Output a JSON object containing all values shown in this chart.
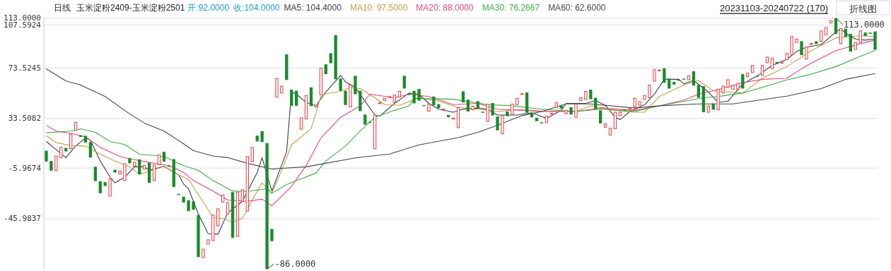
{
  "chart_data": {
    "type": "candlestick",
    "title": "玉米淀粉2409-玉米淀粉2501",
    "subtitle": "日线",
    "annotations": [
      "开:92.0000",
      "收:104.0000",
      "20231103-20240722 (170)",
      "折线图",
      "113.0000",
      "-86.0000"
    ],
    "categories": [
      null,
      null,
      null,
      null,
      null,
      null,
      null,
      null,
      null,
      null,
      null,
      null,
      null,
      null,
      null,
      null,
      null,
      null,
      null,
      null,
      null,
      null,
      null,
      null,
      null,
      null,
      null,
      null,
      null,
      null,
      null,
      null,
      null,
      null,
      null,
      null,
      null,
      null,
      null,
      null,
      null,
      null,
      null,
      null,
      null,
      null,
      null,
      null,
      null,
      null,
      null,
      null,
      null,
      null,
      null,
      null,
      null,
      null,
      null,
      null,
      null,
      null,
      null,
      null,
      null,
      null,
      null,
      null,
      null,
      null,
      null,
      null,
      null,
      null,
      null,
      null,
      null,
      null,
      null,
      null,
      null,
      null,
      null,
      null,
      null,
      null,
      null,
      null,
      null,
      null,
      null,
      null,
      null,
      null,
      null,
      null,
      null,
      null,
      null,
      null,
      null,
      null,
      null,
      null,
      null,
      null,
      null,
      null,
      null,
      null,
      null,
      null,
      null,
      null,
      null,
      null,
      null,
      null,
      null,
      null,
      null,
      null,
      null,
      null,
      null,
      null,
      null,
      null,
      null,
      null,
      null,
      null,
      null,
      null,
      null,
      null,
      null,
      null,
      null,
      null,
      null,
      null,
      null,
      null,
      null,
      null,
      null,
      null,
      null,
      null,
      null,
      null,
      null,
      null,
      null,
      null,
      null,
      null,
      null,
      null,
      null,
      null,
      null,
      null,
      null,
      null,
      null,
      null,
      null,
      null
    ],
    "ohlc": [
      [
        7.9,
        7.9,
        -0.7,
        -0.7
      ],
      [
        -0.3,
        -0.3,
        -8.0,
        -8.0
      ],
      [
        -8.0,
        3.7,
        -8.0,
        3.7
      ],
      [
        2.4,
        10.6,
        2.4,
        10.6
      ],
      [
        10.1,
        10.1,
        7.3,
        7.3
      ],
      [
        9.4,
        21.0,
        9.4,
        21.0
      ],
      [
        24.0,
        30.4,
        24.0,
        30.4
      ],
      [
        20.2,
        20.2,
        18.8,
        18.8
      ],
      [
        19.8,
        19.8,
        14.3,
        14.3
      ],
      [
        14.8,
        14.8,
        2.4,
        2.4
      ],
      [
        -4.9,
        -4.9,
        -16.2,
        -16.2
      ],
      [
        -16.4,
        -16.4,
        -25.9,
        -25.9
      ],
      [
        -17.1,
        -17.1,
        -20.1,
        -20.1
      ],
      [
        -28.1,
        -14.4,
        -28.1,
        -14.4
      ],
      [
        -7.2,
        -7.2,
        -9.4,
        -9.4
      ],
      [
        -10.7,
        -8.3,
        -10.7,
        -8.3
      ],
      [
        -15.8,
        -2.5,
        -15.8,
        -2.5
      ],
      [
        2.1,
        2.1,
        -2.1,
        -2.1
      ],
      [
        -4.5,
        -1.2,
        -4.5,
        -1.2
      ],
      [
        1.0,
        1.0,
        -10.9,
        -10.9
      ],
      [
        -6.7,
        -3.9,
        -6.7,
        -3.9
      ],
      [
        -1.7,
        -1.7,
        -17.6,
        -17.6
      ],
      [
        -15.8,
        -3.4,
        -15.8,
        -3.4
      ],
      [
        -3.2,
        4.6,
        -3.2,
        4.6
      ],
      [
        7.0,
        7.0,
        -0.7,
        -0.7
      ],
      [
        -4.0,
        -4.0,
        -4.5,
        -4.5
      ],
      [
        1.2,
        1.2,
        -20.9,
        -20.9
      ],
      [
        -26.4,
        -26.4,
        -27.3,
        -27.3
      ],
      [
        -28.6,
        -28.6,
        -33.2,
        -33.2
      ],
      [
        -31.4,
        -31.4,
        -40.1,
        -40.1
      ],
      [
        -32.3,
        -32.3,
        -39.0,
        -39.0
      ],
      [
        -43.2,
        -43.2,
        -76.5,
        -76.5
      ],
      [
        -77.0,
        -70.3,
        -77.0,
        -70.3
      ],
      [
        -66.1,
        -62.8,
        -66.1,
        -62.8
      ],
      [
        -63.4,
        -43.2,
        -63.4,
        -43.2
      ],
      [
        -51.8,
        -38.3,
        -51.8,
        -38.3
      ],
      [
        -32.8,
        -27.3,
        -32.8,
        -27.3
      ],
      [
        -42.3,
        -33.2,
        -42.3,
        -33.2
      ],
      [
        -25.0,
        -25.0,
        -61.2,
        -61.2
      ],
      [
        -60.1,
        -25.0,
        -60.1,
        -25.0
      ],
      [
        -32.3,
        -23.1,
        -32.3,
        -23.1
      ],
      [
        -40.0,
        3.3,
        -40.0,
        3.3
      ],
      [
        -0.7,
        10.3,
        -0.7,
        10.3
      ],
      [
        19.8,
        19.8,
        15.2,
        15.2
      ],
      [
        23.4,
        23.4,
        14.7,
        14.7
      ],
      [
        13.9,
        13.9,
        -86,
        -86
      ],
      [
        -54.2,
        -54.2,
        -63.9,
        -63.9
      ],
      [
        50.3,
        65.1,
        50.3,
        65.1
      ],
      [
        53.6,
        59.1,
        53.6,
        59.1
      ],
      [
        84.3,
        84.3,
        64.0,
        64.0
      ],
      [
        56.3,
        56.3,
        43.5,
        43.5
      ],
      [
        55.4,
        55.4,
        43.5,
        43.5
      ],
      [
        24.9,
        34.0,
        24.9,
        34.0
      ],
      [
        33.1,
        51.7,
        33.1,
        51.7
      ],
      [
        58.1,
        58.1,
        43.2,
        43.2
      ],
      [
        42.6,
        44.1,
        42.6,
        44.1
      ],
      [
        52.3,
        73.3,
        52.3,
        73.3
      ],
      [
        76.4,
        76.4,
        68.6,
        68.6
      ],
      [
        85.2,
        85.2,
        77.3,
        77.3
      ],
      [
        99.6,
        99.6,
        64.5,
        64.5
      ],
      [
        65.1,
        65.1,
        55.4,
        55.4
      ],
      [
        55.4,
        55.4,
        44.1,
        44.1
      ],
      [
        42.6,
        60.0,
        42.6,
        60.0
      ],
      [
        67.3,
        67.3,
        52.7,
        52.7
      ],
      [
        55.4,
        55.4,
        39.3,
        39.3
      ],
      [
        36.6,
        36.6,
        28.6,
        28.6
      ],
      [
        30.8,
        30.8,
        30.3,
        30.3
      ],
      [
        9.4,
        36.2,
        9.4,
        36.2
      ],
      [
        45.5,
        46.0,
        45.5,
        46.0
      ],
      [
        47.7,
        49.5,
        47.7,
        49.5
      ],
      [
        49.9,
        50.9,
        49.9,
        50.9
      ],
      [
        46.2,
        52.1,
        46.2,
        52.1
      ],
      [
        50.5,
        55.0,
        50.5,
        55.0
      ],
      [
        67.3,
        67.3,
        57.2,
        57.2
      ],
      [
        53.6,
        53.6,
        52.1,
        52.1
      ],
      [
        55.4,
        55.4,
        45.4,
        45.4
      ],
      [
        56.9,
        56.9,
        47.6,
        47.6
      ],
      [
        44.1,
        44.1,
        43.6,
        43.6
      ],
      [
        39.3,
        44.8,
        39.3,
        44.8
      ],
      [
        50.9,
        50.9,
        43.9,
        43.9
      ],
      [
        44.8,
        44.8,
        41.7,
        41.7
      ],
      [
        40.5,
        41.0,
        40.5,
        41.0
      ],
      [
        36.2,
        36.2,
        34.4,
        34.4
      ],
      [
        33.3,
        33.8,
        33.3,
        33.8
      ],
      [
        26.2,
        42.1,
        26.2,
        42.1
      ],
      [
        55.0,
        55.0,
        46.2,
        46.2
      ],
      [
        48.4,
        48.4,
        39.0,
        39.0
      ],
      [
        40.4,
        43.2,
        40.4,
        43.2
      ],
      [
        47.2,
        47.2,
        41.7,
        41.7
      ],
      [
        38.8,
        38.8,
        38.3,
        38.3
      ],
      [
        31.1,
        44.8,
        31.1,
        44.8
      ],
      [
        45.7,
        45.7,
        35.8,
        35.8
      ],
      [
        35.0,
        35.0,
        24.0,
        24.0
      ],
      [
        21.3,
        35.8,
        21.3,
        35.8
      ],
      [
        39.0,
        39.0,
        35.3,
        35.3
      ],
      [
        36.6,
        44.8,
        36.6,
        44.8
      ],
      [
        44.4,
        49.4,
        44.4,
        49.4
      ],
      [
        52.7,
        53.2,
        52.7,
        53.2
      ],
      [
        54.1,
        54.1,
        38.0,
        38.0
      ],
      [
        38.0,
        38.0,
        34.4,
        34.4
      ],
      [
        34.0,
        34.0,
        31.3,
        31.3
      ],
      [
        30.4,
        30.4,
        29.9,
        29.9
      ],
      [
        30.4,
        35.3,
        30.4,
        35.3
      ],
      [
        37.2,
        37.7,
        37.2,
        37.7
      ],
      [
        42.1,
        45.9,
        42.1,
        45.9
      ],
      [
        43.9,
        43.9,
        41.3,
        41.3
      ],
      [
        37.2,
        39.9,
        37.2,
        39.9
      ],
      [
        42.3,
        42.3,
        36.6,
        36.6
      ],
      [
        34.4,
        44.8,
        34.4,
        44.8
      ],
      [
        47.7,
        49.9,
        47.7,
        49.9
      ],
      [
        48.7,
        55.0,
        48.7,
        55.0
      ],
      [
        56.3,
        56.3,
        48.7,
        48.7
      ],
      [
        49.9,
        49.9,
        40.8,
        40.8
      ],
      [
        39.9,
        39.9,
        29.5,
        29.5
      ],
      [
        26.5,
        29.3,
        26.5,
        29.3
      ],
      [
        20.3,
        25.8,
        20.3,
        25.8
      ],
      [
        25.3,
        38.4,
        25.3,
        38.4
      ],
      [
        35.7,
        38.4,
        35.7,
        38.4
      ],
      [
        40.5,
        40.5,
        40.1,
        40.1
      ],
      [
        41.0,
        41.4,
        41.0,
        41.4
      ],
      [
        42.6,
        49.5,
        42.6,
        49.5
      ],
      [
        44.1,
        46.8,
        44.1,
        46.8
      ],
      [
        48.7,
        51.7,
        48.7,
        51.7
      ],
      [
        49.9,
        60.0,
        49.9,
        60.0
      ],
      [
        63.1,
        72.2,
        63.1,
        72.2
      ],
      [
        71.6,
        72.0,
        71.6,
        72.0
      ],
      [
        73.3,
        73.3,
        61.8,
        61.8
      ],
      [
        65.1,
        65.1,
        57.2,
        57.2
      ],
      [
        62.4,
        62.4,
        60.3,
        60.3
      ],
      [
        64.2,
        64.2,
        63.8,
        63.8
      ],
      [
        65.1,
        65.1,
        64.7,
        64.7
      ],
      [
        64.2,
        67.3,
        64.2,
        67.3
      ],
      [
        70.9,
        70.9,
        59.6,
        59.6
      ],
      [
        60.0,
        60.0,
        49.9,
        49.9
      ],
      [
        59.1,
        59.1,
        38.4,
        38.4
      ],
      [
        38.4,
        43.5,
        38.4,
        43.5
      ],
      [
        45.4,
        45.4,
        40.4,
        40.4
      ],
      [
        40.4,
        56.7,
        40.4,
        56.7
      ],
      [
        53.6,
        59.1,
        53.6,
        59.1
      ],
      [
        58.1,
        64.2,
        58.1,
        64.2
      ],
      [
        56.7,
        59.6,
        56.7,
        59.6
      ],
      [
        56.7,
        61.3,
        56.7,
        61.3
      ],
      [
        68.6,
        68.6,
        57.2,
        57.2
      ],
      [
        66.7,
        69.5,
        66.7,
        69.5
      ],
      [
        70.0,
        75.5,
        70.0,
        75.5
      ],
      [
        67.3,
        67.3,
        66.7,
        66.7
      ],
      [
        67.6,
        75.5,
        67.6,
        75.5
      ],
      [
        77.7,
        82.2,
        77.7,
        82.2
      ],
      [
        73.1,
        81.3,
        73.1,
        81.3
      ],
      [
        78.3,
        78.3,
        76.8,
        76.8
      ],
      [
        77.6,
        78.1,
        77.6,
        78.1
      ],
      [
        80.1,
        85.2,
        80.1,
        85.2
      ],
      [
        84.1,
        98.3,
        84.1,
        98.3
      ],
      [
        93.8,
        96.5,
        93.8,
        96.5
      ],
      [
        94.7,
        94.7,
        83.7,
        83.7
      ],
      [
        80.6,
        90.1,
        80.6,
        90.1
      ],
      [
        92.5,
        93.0,
        92.5,
        93.0
      ],
      [
        94.7,
        94.7,
        92.5,
        92.5
      ],
      [
        94.7,
        102.9,
        94.7,
        102.9
      ],
      [
        99.8,
        105.6,
        99.8,
        105.6
      ],
      [
        109.3,
        111.1,
        109.3,
        111.1
      ],
      [
        113,
        113,
        100.5,
        100.5
      ],
      [
        92.8,
        104.7,
        92.8,
        104.7
      ],
      [
        104.7,
        104.7,
        98.3,
        98.3
      ],
      [
        100.5,
        100.5,
        86.5,
        86.5
      ],
      [
        88.3,
        93.8,
        88.3,
        93.8
      ],
      [
        93.8,
        102.9,
        93.8,
        102.9
      ],
      [
        101.6,
        101.6,
        98.9,
        98.9
      ],
      [
        101.6,
        101.6,
        100.7,
        100.7
      ],
      [
        102.5,
        102.5,
        87.9,
        87.9
      ]
    ],
    "colors": [
      "#1b8b2b",
      "#1b8b2b",
      "#e8383d",
      "#e8383d",
      "#1b8b2b",
      "#e8383d",
      "#e8383d",
      "#1b8b2b",
      "#1b8b2b",
      "#1b8b2b",
      "#1b8b2b",
      "#1b8b2b",
      "#1b8b2b",
      "#e8383d",
      "#1b8b2b",
      "#e8383d",
      "#e8383d",
      "#1b8b2b",
      "#e8383d",
      "#1b8b2b",
      "#e8383d",
      "#1b8b2b",
      "#e8383d",
      "#e8383d",
      "#1b8b2b",
      "#1b8b2b",
      "#1b8b2b",
      "#1b8b2b",
      "#1b8b2b",
      "#1b8b2b",
      "#1b8b2b",
      "#1b8b2b",
      "#e8383d",
      "#e8383d",
      "#e8383d",
      "#e8383d",
      "#e8383d",
      "#e8383d",
      "#1b8b2b",
      "#e8383d",
      "#e8383d",
      "#e8383d",
      "#e8383d",
      "#1b8b2b",
      "#1b8b2b",
      "#1b8b2b",
      "#1b8b2b",
      "#e8383d",
      "#e8383d",
      "#1b8b2b",
      "#1b8b2b",
      "#1b8b2b",
      "#e8383d",
      "#e8383d",
      "#1b8b2b",
      "#e8383d",
      "#e8383d",
      "#1b8b2b",
      "#1b8b2b",
      "#1b8b2b",
      "#1b8b2b",
      "#1b8b2b",
      "#e8383d",
      "#1b8b2b",
      "#1b8b2b",
      "#1b8b2b",
      "#1b8b2b",
      "#e8383d",
      "#e8383d",
      "#e8383d",
      "#e8383d",
      "#e8383d",
      "#e8383d",
      "#1b8b2b",
      "#1b8b2b",
      "#1b8b2b",
      "#1b8b2b",
      "#1b8b2b",
      "#e8383d",
      "#1b8b2b",
      "#1b8b2b",
      "#e8383d",
      "#1b8b2b",
      "#e8383d",
      "#e8383d",
      "#1b8b2b",
      "#1b8b2b",
      "#e8383d",
      "#1b8b2b",
      "#1b8b2b",
      "#e8383d",
      "#1b8b2b",
      "#1b8b2b",
      "#e8383d",
      "#1b8b2b",
      "#e8383d",
      "#e8383d",
      "#e8383d",
      "#1b8b2b",
      "#1b8b2b",
      "#1b8b2b",
      "#1b8b2b",
      "#e8383d",
      "#e8383d",
      "#e8383d",
      "#1b8b2b",
      "#e8383d",
      "#1b8b2b",
      "#e8383d",
      "#e8383d",
      "#e8383d",
      "#1b8b2b",
      "#1b8b2b",
      "#1b8b2b",
      "#e8383d",
      "#e8383d",
      "#e8383d",
      "#e8383d",
      "#1b8b2b",
      "#e8383d",
      "#e8383d",
      "#e8383d",
      "#e8383d",
      "#e8383d",
      "#e8383d",
      "#e8383d",
      "#1b8b2b",
      "#1b8b2b",
      "#1b8b2b",
      "#1b8b2b",
      "#1b8b2b",
      "#e8383d",
      "#1b8b2b",
      "#1b8b2b",
      "#1b8b2b",
      "#e8383d",
      "#1b8b2b",
      "#e8383d",
      "#e8383d",
      "#e8383d",
      "#e8383d",
      "#e8383d",
      "#1b8b2b",
      "#e8383d",
      "#e8383d",
      "#1b8b2b",
      "#e8383d",
      "#e8383d",
      "#e8383d",
      "#1b8b2b",
      "#e8383d",
      "#e8383d",
      "#e8383d",
      "#e8383d",
      "#1b8b2b",
      "#e8383d",
      "#e8383d",
      "#1b8b2b",
      "#e8383d",
      "#e8383d",
      "#e8383d",
      "#1b8b2b",
      "#e8383d",
      "#1b8b2b",
      "#1b8b2b",
      "#e8383d",
      "#e8383d",
      "#1b8b2b",
      "#1b8b2b",
      "#1b8b2b"
    ],
    "series": [
      {
        "type": "line",
        "name": "MA5: 104.4000",
        "color": "#3c3c50",
        "values": [
          15.2,
          null,
          8.8,
          null,
          2.4,
          null,
          11.6,
          null,
          18.0,
          16.1,
          null,
          -0.3,
          null,
          -13.1,
          -17.6,
          null,
          -13.1,
          null,
          -4.9,
          null,
          -4.9,
          -7.6,
          null,
          null,
          -4.5,
          null,
          null,
          -11.3,
          -18.6,
          -22.3,
          null,
          -42.3,
          null,
          -57.9,
          null,
          -58.4,
          null,
          -41.4,
          null,
          null,
          -32.3,
          null,
          null,
          -9.4,
          2.4,
          null,
          -24.1,
          null,
          null,
          7.0,
          54.5,
          52.7,
          null,
          46.2,
          null,
          43.5,
          null,
          54.5,
          null,
          null,
          67.6,
          62.5,
          null,
          58.1,
          null,
          null,
          null,
          36.2,
          35.3,
          null,
          null,
          45.4,
          null,
          null,
          53.6,
          null,
          52.7,
          null,
          45.4,
          null,
          40.8,
          null,
          null,
          38.4,
          null,
          40.8,
          null,
          null,
          41.7,
          null,
          40.8,
          null,
          36.2,
          null,
          null,
          null,
          36.2,
          null,
          null,
          38.0,
          null,
          null,
          33.5,
          null,
          null,
          39.9,
          45.4,
          null,
          null,
          null,
          45.4,
          null,
          47.7,
          null,
          43.9,
          null,
          34.4,
          32.5,
          null,
          39.0,
          null,
          null,
          44.4,
          null,
          52.7,
          null,
          64.5,
          null,
          null,
          64.5,
          60.9,
          null,
          63.6,
          null,
          null,
          54.5,
          null,
          46.2,
          null,
          47.2,
          null,
          null,
          60.9,
          null,
          null,
          67.3,
          null,
          null,
          75.5,
          null,
          null,
          80.4,
          null,
          86.5,
          null,
          90.1,
          null,
          null,
          92.0,
          null,
          null,
          102.0,
          104.7,
          101.0,
          null,
          96.5,
          null,
          95.6,
          null,
          96.5
        ]
      },
      {
        "type": "line",
        "name": "MA10: 97.5000",
        "color": "#c0a045",
        "values": [
          19.8,
          null,
          14.3,
          null,
          null,
          11.9,
          null,
          null,
          11.6,
          null,
          null,
          5.1,
          null,
          null,
          -0.3,
          null,
          null,
          -4.9,
          null,
          -10.9,
          null,
          -8.5,
          null,
          null,
          -4.5,
          null,
          null,
          -11.3,
          null,
          -14.9,
          null,
          -26.8,
          null,
          null,
          -45.0,
          null,
          -46.0,
          null,
          -48.7,
          null,
          -46.0,
          null,
          -31.3,
          null,
          -17.6,
          null,
          -25.9,
          null,
          -7.6,
          null,
          12.5,
          null,
          null,
          null,
          25.3,
          null,
          51.0,
          53.0,
          null,
          null,
          54.9,
          null,
          58.1,
          null,
          57.2,
          null,
          null,
          49.9,
          null,
          44.4,
          null,
          null,
          43.9,
          null,
          null,
          null,
          49.9,
          null,
          null,
          null,
          47.2,
          null,
          null,
          null,
          42.1,
          null,
          null,
          null,
          40.8,
          null,
          null,
          null,
          39.0,
          null,
          null,
          null,
          null,
          40.8,
          null,
          null,
          null,
          39.3,
          null,
          null,
          null,
          null,
          null,
          null,
          39.0,
          null,
          null,
          43.5,
          null,
          42.6,
          null,
          null,
          39.9,
          null,
          null,
          null,
          38.4,
          null,
          38.4,
          null,
          null,
          50.9,
          null,
          null,
          null,
          null,
          60.0,
          null,
          null,
          63.6,
          null,
          null,
          55.4,
          null,
          null,
          null,
          null,
          null,
          53.6,
          null,
          null,
          null,
          65.3,
          null,
          null,
          null,
          null,
          74.6,
          null,
          null,
          null,
          null,
          87.3,
          null,
          null,
          null,
          null,
          97.4,
          null,
          null,
          null,
          null,
          99.2,
          null,
          null,
          98.3
        ]
      },
      {
        "type": "line",
        "name": "MA20: 88.0000",
        "color": "#e8457c",
        "values": [
          28.0,
          null,
          23.4,
          null,
          null,
          21.6,
          null,
          null,
          18.8,
          null,
          null,
          10.6,
          null,
          null,
          null,
          3.3,
          null,
          1.5,
          null,
          null,
          null,
          null,
          -2.1,
          null,
          null,
          -3.9,
          null,
          null,
          -9.4,
          null,
          -15.8,
          null,
          null,
          null,
          -24.1,
          null,
          null,
          -31.3,
          null,
          null,
          null,
          -32.3,
          null,
          null,
          -30.5,
          null,
          -35.9,
          null,
          null,
          null,
          -20.4,
          null,
          null,
          -3.9,
          null,
          null,
          18.0,
          null,
          null,
          null,
          34.4,
          null,
          null,
          null,
          43.5,
          null,
          52.7,
          null,
          null,
          null,
          null,
          49.9,
          null,
          null,
          52.7,
          null,
          null,
          null,
          50.9,
          null,
          null,
          null,
          null,
          44.4,
          null,
          null,
          null,
          null,
          45.4,
          null,
          null,
          null,
          40.8,
          null,
          null,
          null,
          null,
          39.9,
          null,
          null,
          null,
          39.0,
          null,
          null,
          null,
          null,
          null,
          null,
          39.0,
          null,
          null,
          null,
          null,
          41.7,
          null,
          null,
          null,
          null,
          null,
          null,
          39.9,
          null,
          null,
          null,
          null,
          43.5,
          null,
          null,
          null,
          null,
          48.1,
          null,
          null,
          52.7,
          null,
          null,
          null,
          56.3,
          null,
          null,
          null,
          null,
          61.8,
          null,
          null,
          null,
          64.5,
          null,
          null,
          null,
          null,
          65.3,
          null,
          null,
          72.9,
          null,
          77.3,
          null,
          null,
          null,
          null,
          87.3,
          null,
          null,
          null,
          null,
          92.8,
          null,
          null,
          95.6
        ]
      },
      {
        "type": "line",
        "name": "MA30: 76.2667",
        "color": "#3cb043",
        "values": [
          22.1,
          null,
          null,
          null,
          null,
          23.4,
          null,
          25.3,
          null,
          null,
          22.5,
          null,
          null,
          15.2,
          null,
          null,
          12.8,
          null,
          null,
          5.1,
          null,
          null,
          null,
          null,
          3.3,
          null,
          null,
          null,
          -4.0,
          null,
          null,
          -7.6,
          null,
          null,
          -15.8,
          null,
          null,
          null,
          -24.1,
          null,
          null,
          -24.4,
          null,
          null,
          null,
          -22.3,
          -25.9,
          null,
          null,
          -19.0,
          null,
          null,
          null,
          null,
          null,
          -9.8,
          null,
          -0.3,
          null,
          null,
          null,
          11.6,
          null,
          null,
          23.5,
          null,
          null,
          34.4,
          null,
          null,
          null,
          39.9,
          null,
          null,
          43.5,
          49.4,
          null,
          null,
          null,
          null,
          null,
          null,
          null,
          48.7,
          null,
          null,
          null,
          null,
          null,
          null,
          44.4,
          null,
          null,
          null,
          null,
          43.5,
          null,
          null,
          null,
          null,
          null,
          40.8,
          null,
          null,
          null,
          null,
          null,
          null,
          39.0,
          null,
          null,
          null,
          null,
          40.8,
          null,
          null,
          null,
          null,
          null,
          null,
          39.0,
          null,
          null,
          null,
          null,
          43.5,
          null,
          null,
          null,
          null,
          null,
          null,
          null,
          null,
          49.9,
          null,
          null,
          50.9,
          null,
          null,
          null,
          null,
          53.6,
          null,
          null,
          null,
          58.1,
          null,
          null,
          null,
          null,
          64.0,
          null,
          null,
          null,
          null,
          68.6,
          null,
          null,
          null,
          null,
          74.6,
          null,
          null,
          null,
          null,
          82.8,
          null,
          null,
          87.3
        ]
      },
      {
        "type": "line",
        "name": "MA60: 62.6000",
        "color": "#484848",
        "values": [
          72.8,
          null,
          null,
          null,
          63.2,
          null,
          null,
          60.0,
          null,
          null,
          null,
          null,
          50.9,
          null,
          null,
          null,
          null,
          37.1,
          null,
          null,
          29.8,
          null,
          null,
          null,
          23.4,
          null,
          null,
          null,
          13.4,
          null,
          7.9,
          null,
          null,
          null,
          3.7,
          null,
          null,
          2.4,
          null,
          null,
          null,
          -2.1,
          null,
          null,
          null,
          null,
          -6.7,
          null,
          -6.1,
          null,
          null,
          null,
          null,
          -4.9,
          null,
          null,
          null,
          -2.1,
          null,
          null,
          null,
          null,
          null,
          2.2,
          null,
          null,
          null,
          null,
          null,
          null,
          5.2,
          null,
          null,
          null,
          null,
          null,
          12.5,
          null,
          null,
          null,
          null,
          null,
          null,
          null,
          18.3,
          null,
          null,
          null,
          22.5,
          null,
          null,
          null,
          28.0,
          null,
          null,
          null,
          null,
          35.7,
          null,
          null,
          null,
          39.0,
          null,
          null,
          null,
          null,
          45.0,
          null,
          null,
          null,
          null,
          45.0,
          null,
          null,
          null,
          null,
          null,
          null,
          null,
          null,
          41.7,
          null,
          null,
          null,
          null,
          43.5,
          null,
          null,
          null,
          null,
          null,
          null,
          null,
          45.0,
          null,
          null,
          null,
          null,
          null,
          null,
          45.0,
          null,
          null,
          null,
          null,
          null,
          null,
          null,
          null,
          null,
          null,
          51.2,
          null,
          null,
          null,
          null,
          null,
          null,
          57.2,
          null,
          null,
          null,
          null,
          64.5,
          null,
          null,
          null,
          null,
          null,
          69.1
        ]
      }
    ],
    "ylim": [
      -87,
      114
    ],
    "yticks": [
      {
        "value": 113,
        "label": "113.0000"
      },
      {
        "value": 107.5924,
        "label": "107.5924"
      },
      {
        "value": 73.5245,
        "label": "73.5245"
      },
      {
        "value": 33.5082,
        "label": "33.5082"
      },
      {
        "value": -5.9674,
        "label": "-5.9674"
      },
      {
        "value": -45.9837,
        "label": "-45.9837"
      }
    ],
    "grid": "y",
    "tick_labels": "y"
  }
}
